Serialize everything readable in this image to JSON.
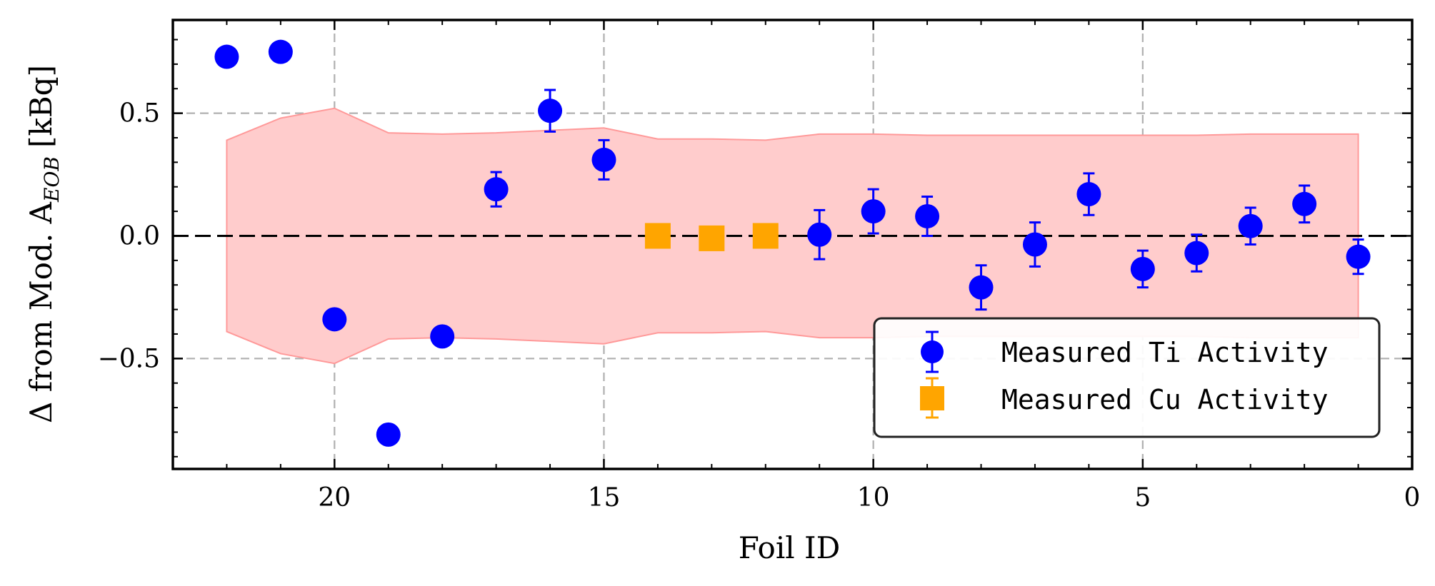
{
  "chart_data": {
    "type": "scatter",
    "xlabel": "Foil ID",
    "ylabel": "Δ from Mod. A",
    "ylabel_subscript": "EOB",
    "ylabel_unit": "[kBq]",
    "xlim": [
      23,
      0
    ],
    "ylim": [
      -0.95,
      0.88
    ],
    "x_ticks": [
      20,
      15,
      10,
      5,
      0
    ],
    "x_tick_labels": [
      "20",
      "15",
      "10",
      "5",
      "0"
    ],
    "y_ticks": [
      0.5,
      0.0,
      -0.5
    ],
    "y_tick_labels": [
      "0.5",
      "0.0",
      "−0.5"
    ],
    "grid": true,
    "zero_line": true,
    "legend_position": "lower-right",
    "band": {
      "color": "#ffcccc",
      "edge_color": "#ff9999",
      "x": [
        22,
        21,
        20,
        19,
        18,
        17,
        16,
        15,
        14,
        13,
        12,
        11,
        10,
        9,
        8,
        7,
        6,
        5,
        4,
        3,
        2,
        1
      ],
      "upper": [
        0.39,
        0.48,
        0.52,
        0.42,
        0.415,
        0.42,
        0.43,
        0.44,
        0.395,
        0.395,
        0.39,
        0.415,
        0.415,
        0.41,
        0.41,
        0.41,
        0.41,
        0.41,
        0.41,
        0.415,
        0.415,
        0.415
      ],
      "lower": [
        -0.39,
        -0.48,
        -0.52,
        -0.42,
        -0.415,
        -0.42,
        -0.43,
        -0.44,
        -0.395,
        -0.395,
        -0.39,
        -0.415,
        -0.415,
        -0.41,
        -0.41,
        -0.41,
        -0.41,
        -0.41,
        -0.41,
        -0.415,
        -0.415,
        -0.415
      ]
    },
    "series": [
      {
        "name": "Measured Ti Activity",
        "marker": "circle",
        "color": "#0000ff",
        "x": [
          22,
          21,
          20,
          19,
          18,
          17,
          16,
          15,
          11,
          10,
          9,
          8,
          7,
          6,
          5,
          4,
          3,
          2,
          1
        ],
        "y": [
          0.73,
          0.75,
          -0.34,
          -0.81,
          -0.41,
          0.19,
          0.51,
          0.31,
          0.005,
          0.1,
          0.08,
          -0.21,
          -0.035,
          0.17,
          -0.135,
          -0.07,
          0.04,
          0.13,
          -0.085
        ],
        "err": [
          0.0,
          0.0,
          0.0,
          0.035,
          0.035,
          0.07,
          0.085,
          0.08,
          0.1,
          0.09,
          0.08,
          0.09,
          0.09,
          0.085,
          0.075,
          0.075,
          0.075,
          0.075,
          0.07
        ]
      },
      {
        "name": "Measured Cu Activity",
        "marker": "square",
        "color": "#ffa500",
        "x": [
          14,
          13,
          12
        ],
        "y": [
          0.0,
          -0.01,
          0.0
        ],
        "err": [
          0.0,
          0.0,
          0.0
        ]
      }
    ]
  }
}
